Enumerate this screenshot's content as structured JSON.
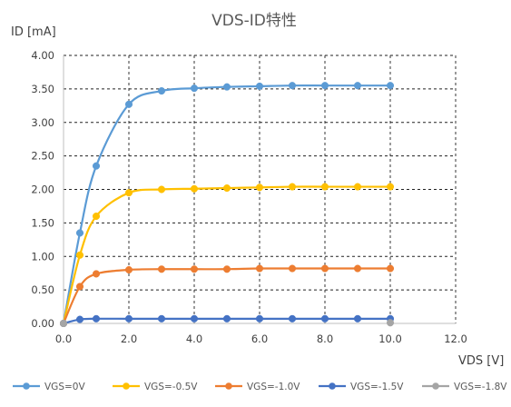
{
  "chart_data": {
    "type": "scatter",
    "title": "VDS-ID特性",
    "ylabel": "ID [mA]",
    "xlabel": "VDS [V]",
    "xlim": [
      0,
      12
    ],
    "ylim": [
      0,
      4
    ],
    "xticks": [
      0,
      2,
      4,
      6,
      8,
      10,
      12
    ],
    "xtick_labels": [
      "0.0",
      "2.0",
      "4.0",
      "6.0",
      "8.0",
      "10.0",
      "12.0"
    ],
    "yticks": [
      0,
      0.5,
      1,
      1.5,
      2,
      2.5,
      3,
      3.5,
      4
    ],
    "ytick_labels": [
      "0.00",
      "0.50",
      "1.00",
      "1.50",
      "2.00",
      "2.50",
      "3.00",
      "3.50",
      "4.00"
    ],
    "grid": true,
    "legend_position": "bottom",
    "x": [
      0,
      0.5,
      1,
      2,
      3,
      4,
      5,
      6,
      7,
      8,
      9,
      10
    ],
    "series": [
      {
        "name": "VGS=0V",
        "color": "#5b9bd5",
        "values": [
          0,
          1.35,
          2.35,
          3.27,
          3.47,
          3.51,
          3.53,
          3.54,
          3.55,
          3.55,
          3.55,
          3.55
        ]
      },
      {
        "name": "VGS=-0.5V",
        "color": "#ffc000",
        "values": [
          0,
          1.02,
          1.6,
          1.95,
          2.0,
          2.01,
          2.02,
          2.03,
          2.04,
          2.04,
          2.04,
          2.04
        ]
      },
      {
        "name": "VGS=-1.0V",
        "color": "#ed7d31",
        "values": [
          0,
          0.55,
          0.74,
          0.8,
          0.81,
          0.81,
          0.81,
          0.82,
          0.82,
          0.82,
          0.82,
          0.82
        ]
      },
      {
        "name": "VGS=-1.5V",
        "color": "#4472c4",
        "values": [
          0,
          0.06,
          0.07,
          0.07,
          0.07,
          0.07,
          0.07,
          0.07,
          0.07,
          0.07,
          0.07,
          0.07
        ]
      },
      {
        "name": "VGS=-1.8V",
        "color": "#a5a5a5",
        "values": [
          0,
          null,
          null,
          null,
          null,
          null,
          null,
          null,
          null,
          null,
          null,
          0.01
        ]
      }
    ]
  }
}
